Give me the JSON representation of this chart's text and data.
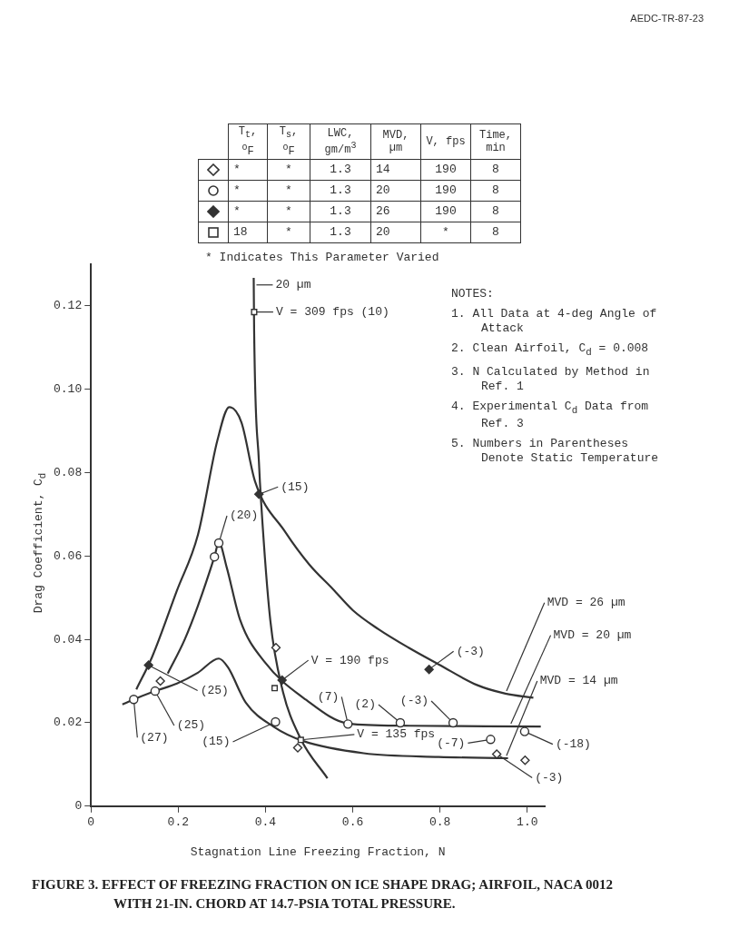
{
  "chart_data": {
    "type": "scatter",
    "title": "FIGURE 3. EFFECT OF FREEZING FRACTION ON ICE SHAPE DRAG; AIRFOIL, NACA 0012 WITH 21-IN. CHORD AT 14.7-PSIA TOTAL PRESSURE.",
    "xlabel": "Stagnation Line Freezing Fraction, N",
    "ylabel": "Drag Coefficient, C$_{d}$",
    "xlim": [
      0,
      1.04
    ],
    "xticks": [
      0,
      0.2,
      0.4,
      0.6,
      0.8,
      {
        "value": 1,
        "label": "1.0"
      }
    ],
    "ylim": [
      0,
      0.13
    ],
    "yticks": [
      0,
      0.02,
      0.04,
      0.06,
      0.08,
      {
        "value": 0.1,
        "label": "0.10"
      },
      0.12
    ],
    "grid": false,
    "legend": false,
    "series": [
      {
        "type": "scatter",
        "marker": "diamond",
        "color": "#333333",
        "x": [
          0.159,
          0.424,
          0.474,
          0.93,
          0.995
        ],
        "values": [
          0.03,
          0.038,
          0.014,
          0.0125,
          0.011
        ]
      },
      {
        "type": "scatter",
        "marker": "circle",
        "color": "#333333",
        "x": [
          0.098,
          0.147,
          0.283,
          0.293,
          0.423,
          0.589,
          0.709,
          0.83,
          0.916,
          0.994
        ],
        "values": [
          0.0256,
          0.0276,
          0.0598,
          0.0631,
          0.0202,
          0.0197,
          0.02,
          0.02,
          0.016,
          0.0179
        ]
      },
      {
        "type": "scatter",
        "marker": "diamond",
        "color": "#333333",
        "x": [
          0.132,
          0.385,
          0.438,
          0.775
        ],
        "values": [
          0.0338,
          0.0748,
          0.0302,
          0.0328
        ]
      },
      {
        "type": "scatter",
        "marker": "square",
        "color": "#333333",
        "x": [
          0.374,
          0.421,
          0.481
        ],
        "values": [
          0.1185,
          0.0283,
          0.0159
        ]
      },
      {
        "type": "line",
        "marker": "none",
        "color": "#333333",
        "x": [
          0.104,
          0.141,
          0.197,
          0.245,
          0.29,
          0.317,
          0.345,
          0.376,
          0.445,
          0.5,
          0.555,
          0.6,
          0.658,
          0.728,
          0.797,
          0.886,
          0.95,
          1.014
        ],
        "values": [
          0.028,
          0.036,
          0.0517,
          0.065,
          0.0878,
          0.0957,
          0.092,
          0.0779,
          0.0658,
          0.058,
          0.052,
          0.047,
          0.0425,
          0.038,
          0.034,
          0.029,
          0.027,
          0.026
        ]
      },
      {
        "type": "line",
        "marker": "none",
        "color": "#333333",
        "x": [
          0.176,
          0.215,
          0.245,
          0.283,
          0.293,
          0.311,
          0.342,
          0.397,
          0.493,
          0.59,
          0.714,
          0.83,
          1.031
        ],
        "values": [
          0.0318,
          0.04,
          0.048,
          0.0598,
          0.0633,
          0.0573,
          0.0446,
          0.0347,
          0.0255,
          0.0198,
          0.0193,
          0.0192,
          0.0191
        ]
      },
      {
        "type": "line",
        "marker": "none",
        "color": "#333333",
        "x": [
          0.072,
          0.098,
          0.147,
          0.197,
          0.245,
          0.293,
          0.314,
          0.355,
          0.418,
          0.487,
          0.625,
          0.797,
          0.956
        ],
        "values": [
          0.0244,
          0.0256,
          0.0276,
          0.0294,
          0.032,
          0.0354,
          0.0333,
          0.0248,
          0.0191,
          0.0156,
          0.0127,
          0.0118,
          0.0115
        ]
      },
      {
        "type": "line",
        "marker": "none",
        "color": "#333333",
        "x": [
          0.373,
          0.374,
          0.385,
          0.39,
          0.411,
          0.438,
          0.48,
          0.542
        ],
        "values": [
          0.1267,
          0.114,
          0.0825,
          0.0729,
          0.0446,
          0.0283,
          0.0163,
          0.0067
        ]
      }
    ],
    "annotations": [
      "T$_{t}$, $^{o}$F",
      "T$_{s}$, $^{o}$F",
      "LWC, gm/m$^{3}$",
      "MVD, µm",
      "V, fps",
      "Time, min",
      "*",
      "*",
      "1.3",
      "14",
      "190",
      "8",
      "*",
      "*",
      "1.3",
      "20",
      "190",
      "8",
      "*",
      "*",
      "1.3",
      "26",
      "190",
      "8",
      "18",
      "*",
      "1.3",
      "20",
      "*",
      "8",
      "* Indicates This Parameter Varied",
      "NOTES:",
      "1. All Data at 4-deg Angle of Attack",
      "2. Clean Airfoil, C$_{d}$ = 0.008",
      "3. N Calculated by Method in Ref. 1",
      "4. Experimental C$_{d}$ Data from Ref. 3",
      "5. Numbers in Parentheses Denote Static Temperature",
      "AEDC-TR-87-23",
      {
        "text": "20 µm",
        "x": 0.373,
        "y": 0.125
      },
      {
        "text": "V = 309 fps (10)",
        "x": 0.374,
        "y": 0.1185
      },
      {
        "text": "(15)",
        "x": 0.385,
        "y": 0.0748
      },
      {
        "text": "(20)",
        "x": 0.293,
        "y": 0.0631
      },
      {
        "text": "(25)",
        "x": 0.132,
        "y": 0.0338
      },
      {
        "text": "(25)",
        "x": 0.147,
        "y": 0.0276
      },
      {
        "text": "(27)",
        "x": 0.098,
        "y": 0.0256
      },
      {
        "text": "(15)",
        "x": 0.423,
        "y": 0.0202
      },
      {
        "text": "V = 190 fps",
        "x": 0.438,
        "y": 0.0302
      },
      {
        "text": "V = 135 fps",
        "x": 0.481,
        "y": 0.0159
      },
      {
        "text": "(7)",
        "x": 0.589,
        "y": 0.0197
      },
      {
        "text": "(2)",
        "x": 0.709,
        "y": 0.02
      },
      {
        "text": "(-3)",
        "x": 0.83,
        "y": 0.02
      },
      {
        "text": "(-3)",
        "x": 0.775,
        "y": 0.0328
      },
      {
        "text": "(-7)",
        "x": 0.916,
        "y": 0.016
      },
      {
        "text": "(-18)",
        "x": 0.994,
        "y": 0.0179
      },
      {
        "text": "(-3)",
        "x": 0.93,
        "y": 0.0125
      },
      {
        "text": "MVD = 26 µm",
        "x": 0.95,
        "y": 0.027
      },
      {
        "text": "MVD = 20 µm",
        "x": 0.96,
        "y": 0.0192
      },
      {
        "text": "MVD = 14 µm",
        "x": 0.95,
        "y": 0.0115
      }
    ]
  }
}
